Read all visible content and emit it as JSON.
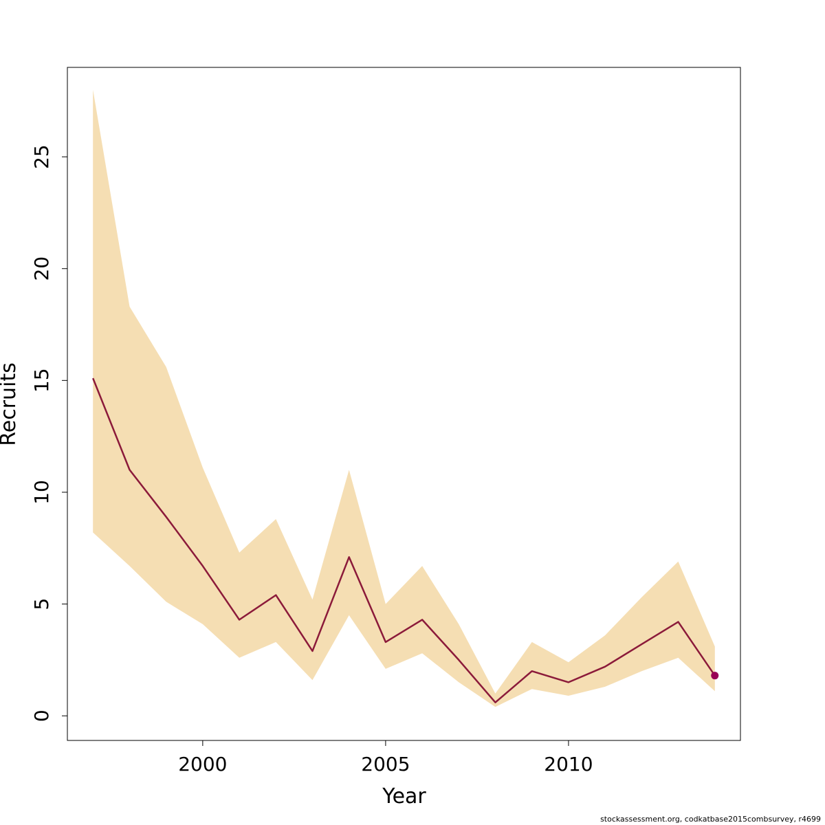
{
  "chart_data": {
    "type": "area",
    "xlabel": "Year",
    "ylabel": "Recruits",
    "xlim": [
      1996.3,
      2014.7
    ],
    "ylim": [
      -1.1,
      29.0
    ],
    "x_ticks": [
      2000,
      2005,
      2010
    ],
    "x_tick_labels": [
      "2000",
      "2005",
      "2010"
    ],
    "y_ticks": [
      0,
      5,
      10,
      15,
      20,
      25
    ],
    "y_tick_labels": [
      "0",
      "5",
      "10",
      "15",
      "20",
      "25"
    ],
    "grid": false,
    "colors": {
      "band": "#f5deb3",
      "line": "#8b1a3a",
      "point": "#990055",
      "axis": "#000000"
    },
    "x": [
      1997,
      1998,
      1999,
      2000,
      2001,
      2002,
      2003,
      2004,
      2005,
      2006,
      2007,
      2008,
      2009,
      2010,
      2011,
      2012,
      2013,
      2014
    ],
    "series": [
      {
        "role": "estimate",
        "values": [
          15.1,
          11.0,
          8.9,
          6.7,
          4.3,
          5.4,
          2.9,
          7.1,
          3.3,
          4.3,
          2.5,
          0.6,
          2.0,
          1.5,
          2.2,
          3.2,
          4.2,
          1.8
        ]
      },
      {
        "role": "upper",
        "values": [
          28.0,
          18.3,
          15.6,
          11.1,
          7.3,
          8.8,
          5.2,
          11.0,
          5.0,
          6.7,
          4.1,
          1.0,
          3.3,
          2.4,
          3.6,
          5.3,
          6.9,
          3.1
        ]
      },
      {
        "role": "lower",
        "values": [
          8.2,
          6.7,
          5.1,
          4.1,
          2.6,
          3.3,
          1.6,
          4.5,
          2.1,
          2.8,
          1.5,
          0.4,
          1.2,
          0.9,
          1.3,
          2.0,
          2.6,
          1.1
        ]
      }
    ],
    "last_point": {
      "x": 2014,
      "y": 1.8
    }
  },
  "footnote": "stockassessment.org, codkatbase2015combsurvey, r4699"
}
